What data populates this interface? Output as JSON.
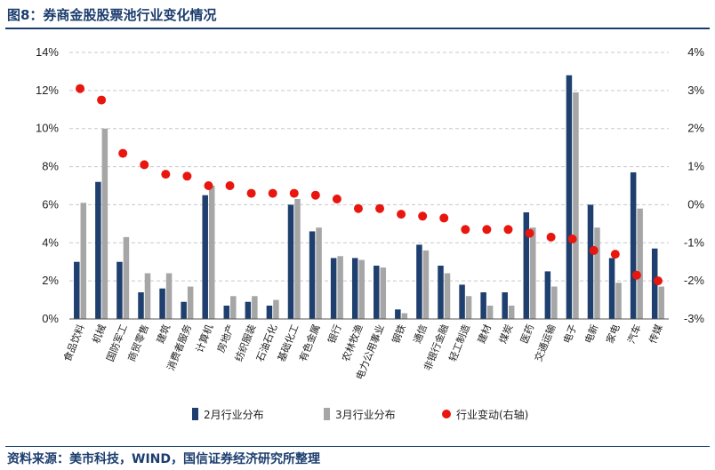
{
  "header": {
    "title": "图8：券商金股股票池行业变化情况"
  },
  "footer": {
    "source": "资料来源：美市科技，WIND，国信证券经济研究所整理"
  },
  "colors": {
    "feb": "#1f3f6e",
    "mar": "#a6a6a6",
    "change": "#e8160e",
    "grid": "#c8c8c8"
  },
  "chart_data": {
    "type": "bar",
    "title": "",
    "xlabel": "",
    "ylabel": "",
    "categories": [
      "食品饮料",
      "机械",
      "国防军工",
      "商贸零售",
      "建筑",
      "消费者服务",
      "计算机",
      "房地产",
      "纺织服装",
      "石油石化",
      "基础化工",
      "有色金属",
      "银行",
      "农林牧渔",
      "电力公用事业",
      "钢铁",
      "通信",
      "非银行金融",
      "轻工制造",
      "建材",
      "煤炭",
      "医药",
      "交通运输",
      "电子",
      "电新",
      "家电",
      "汽车",
      "传媒"
    ],
    "series": [
      {
        "name": "2月行业分布",
        "type": "bar",
        "axis": "left",
        "values": [
          3.0,
          7.2,
          3.0,
          1.4,
          1.6,
          0.9,
          6.5,
          0.7,
          0.9,
          0.7,
          6.0,
          4.6,
          3.2,
          3.2,
          2.8,
          0.5,
          3.9,
          2.8,
          1.8,
          1.4,
          1.4,
          5.6,
          2.5,
          12.8,
          6.0,
          3.2,
          7.7,
          3.7
        ]
      },
      {
        "name": "3月行业分布",
        "type": "bar",
        "axis": "left",
        "values": [
          6.1,
          10.0,
          4.3,
          2.4,
          2.4,
          1.7,
          7.0,
          1.2,
          1.2,
          1.0,
          6.3,
          4.8,
          3.3,
          3.1,
          2.7,
          0.3,
          3.6,
          2.4,
          1.2,
          0.7,
          0.7,
          4.8,
          1.7,
          11.9,
          4.8,
          1.9,
          5.8,
          1.7
        ]
      },
      {
        "name": "行业变动(右轴)",
        "type": "scatter",
        "axis": "right",
        "values": [
          3.05,
          2.75,
          1.35,
          1.05,
          0.8,
          0.75,
          0.5,
          0.5,
          0.3,
          0.3,
          0.3,
          0.25,
          0.15,
          -0.1,
          -0.1,
          -0.25,
          -0.3,
          -0.35,
          -0.65,
          -0.65,
          -0.65,
          -0.75,
          -0.85,
          -0.9,
          -1.2,
          -1.3,
          -1.85,
          -2.0
        ]
      }
    ],
    "y_left": {
      "ylim": [
        0,
        14
      ],
      "ticks": [
        "0%",
        "2%",
        "4%",
        "6%",
        "8%",
        "10%",
        "12%",
        "14%"
      ]
    },
    "y_right": {
      "ylim": [
        -3,
        4
      ],
      "ticks": [
        "-3%",
        "-2%",
        "-1%",
        "0%",
        "1%",
        "2%",
        "3%",
        "4%"
      ]
    },
    "grid": true,
    "legend_position": "bottom-center"
  }
}
